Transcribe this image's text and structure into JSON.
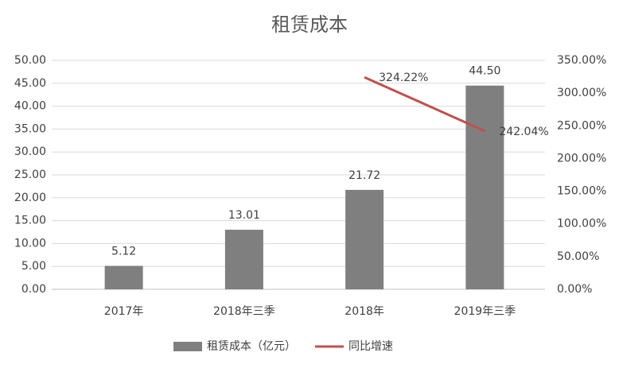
{
  "chart_data": {
    "type": "bar",
    "title": "租赁成本",
    "categories": [
      "2017年",
      "2018年三季",
      "2018年",
      "2019年三季"
    ],
    "series": [
      {
        "name": "租赁成本（亿元）",
        "type": "bar",
        "color": "#7f7f7f",
        "values": [
          5.12,
          13.01,
          21.72,
          44.5
        ],
        "value_labels": [
          "5.12",
          "13.01",
          "21.72",
          "44.50"
        ]
      },
      {
        "name": "同比增速",
        "type": "line",
        "axis": "y2",
        "color": "#c0504d",
        "values": [
          null,
          null,
          324.22,
          242.04
        ],
        "value_labels": [
          null,
          null,
          "324.22%",
          "242.04%"
        ]
      }
    ],
    "ylim": [
      0,
      50
    ],
    "yticks": [
      {
        "value": 0,
        "label": "0.00"
      },
      {
        "value": 5,
        "label": "5.00"
      },
      {
        "value": 10,
        "label": "10.00"
      },
      {
        "value": 15,
        "label": "15.00"
      },
      {
        "value": 20,
        "label": "20.00"
      },
      {
        "value": 25,
        "label": "25.00"
      },
      {
        "value": 30,
        "label": "30.00"
      },
      {
        "value": 35,
        "label": "35.00"
      },
      {
        "value": 40,
        "label": "40.00"
      },
      {
        "value": 45,
        "label": "45.00"
      },
      {
        "value": 50,
        "label": "50.00"
      }
    ],
    "y2lim": [
      0,
      350
    ],
    "y2ticks": [
      {
        "value": 0,
        "label": "0.00%"
      },
      {
        "value": 50,
        "label": "50.00%"
      },
      {
        "value": 100,
        "label": "100.00%"
      },
      {
        "value": 150,
        "label": "150.00%"
      },
      {
        "value": 200,
        "label": "200.00%"
      },
      {
        "value": 250,
        "label": "250.00%"
      },
      {
        "value": 300,
        "label": "300.00%"
      },
      {
        "value": 350,
        "label": "350.00%"
      }
    ],
    "grid": true,
    "legend": "bottom"
  }
}
